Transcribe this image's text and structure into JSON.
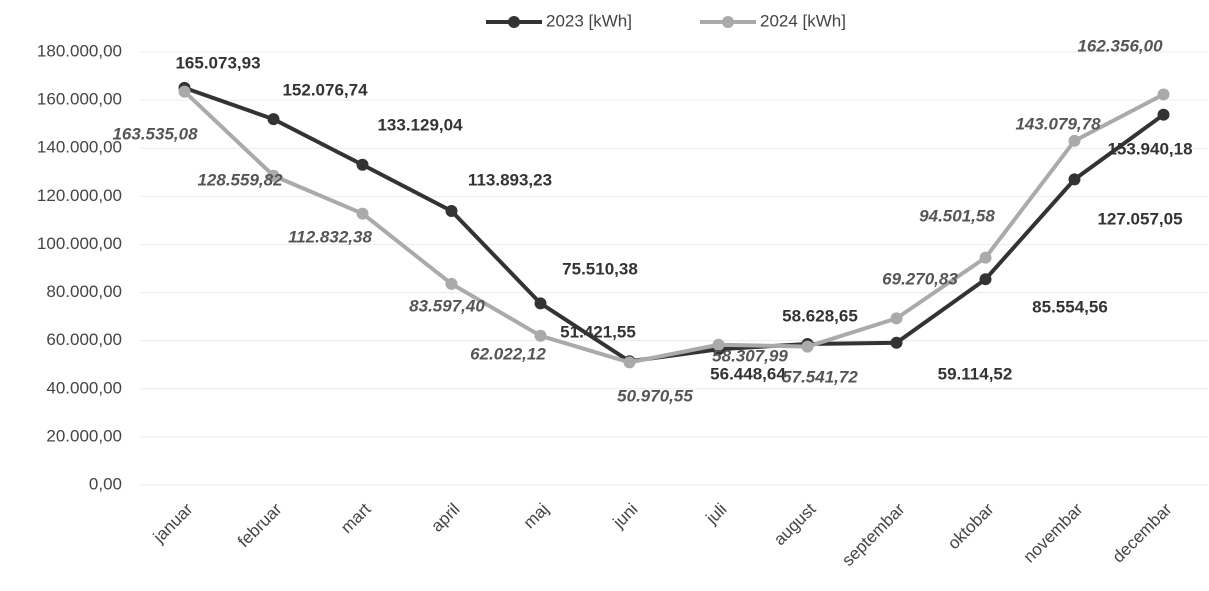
{
  "chart_data": {
    "type": "line",
    "categories": [
      "januar",
      "februar",
      "mart",
      "april",
      "maj",
      "juni",
      "juli",
      "august",
      "septembar",
      "oktobar",
      "novembar",
      "decembar"
    ],
    "series": [
      {
        "name": "2023 [kWh]",
        "color": "#333333",
        "values": [
          165073.93,
          152076.74,
          133129.04,
          113893.23,
          75510.38,
          51421.55,
          56448.64,
          58628.65,
          59114.52,
          85554.56,
          127057.05,
          153940.18
        ],
        "value_labels": [
          "165.073,93",
          "152.076,74",
          "133.129,04",
          "113.893,23",
          "75.510,38",
          "51.421,55",
          "56.448,64",
          "58.628,65",
          "59.114,52",
          "85.554,56",
          "127.057,05",
          "153.940,18"
        ]
      },
      {
        "name": "2024 [kWh]",
        "color": "#aaaaaa",
        "values": [
          163535.08,
          128559.82,
          112832.38,
          83597.4,
          62022.12,
          50970.55,
          58307.99,
          57541.72,
          69270.83,
          94501.58,
          143079.78,
          162356.0
        ],
        "value_labels": [
          "163.535,08",
          "128.559,82",
          "112.832,38",
          "83.597,40",
          "62.022,12",
          "50.970,55",
          "58.307,99",
          "57.541,72",
          "69.270,83",
          "94.501,58",
          "143.079,78",
          "162.356,00"
        ]
      }
    ],
    "ylim": [
      0,
      180000
    ],
    "yticks": [
      {
        "value": 0,
        "label": "0,00"
      },
      {
        "value": 20000,
        "label": "20.000,00"
      },
      {
        "value": 40000,
        "label": "40.000,00"
      },
      {
        "value": 60000,
        "label": "60.000,00"
      },
      {
        "value": 80000,
        "label": "80.000,00"
      },
      {
        "value": 100000,
        "label": "100.000,00"
      },
      {
        "value": 120000,
        "label": "120.000,00"
      },
      {
        "value": 140000,
        "label": "140.000,00"
      },
      {
        "value": 160000,
        "label": "160.000,00"
      },
      {
        "value": 180000,
        "label": "180.000,00"
      }
    ],
    "grid": true,
    "legend": "top"
  }
}
